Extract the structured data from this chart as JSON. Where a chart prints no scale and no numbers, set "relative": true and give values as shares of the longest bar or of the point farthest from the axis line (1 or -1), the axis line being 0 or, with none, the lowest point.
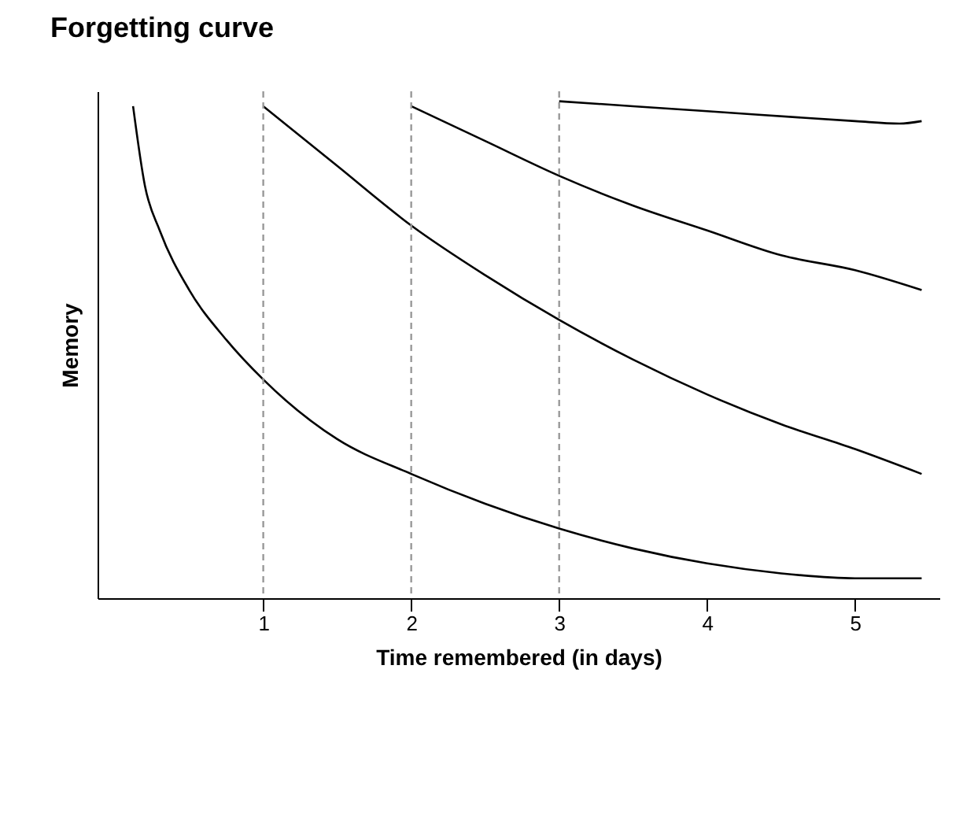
{
  "chart_data": {
    "type": "line",
    "title": "Forgetting curve",
    "xlabel": "Time remembered (in days)",
    "ylabel": "Memory",
    "relative": true,
    "xlim": [
      -0.12,
      5.57
    ],
    "xticks": [
      1,
      2,
      3,
      4,
      5
    ],
    "grid": false,
    "marker": "none",
    "line_style": "solid",
    "series": [
      {
        "color": "#000000",
        "x": [
          0.12,
          0.2,
          0.3,
          0.5,
          0.75,
          1,
          1.5,
          2,
          2.5,
          3,
          3.5,
          4,
          4.5,
          5,
          5.45
        ],
        "values": [
          0.99,
          0.83,
          0.74,
          0.62,
          0.52,
          0.44,
          0.32,
          0.25,
          0.19,
          0.14,
          0.1,
          0.07,
          0.05,
          0.04,
          0.04
        ]
      },
      {
        "color": "#000000",
        "x": [
          1,
          1.5,
          2,
          2.5,
          3,
          3.5,
          4,
          4.5,
          5,
          5.45
        ],
        "values": [
          0.99,
          0.87,
          0.75,
          0.65,
          0.56,
          0.48,
          0.41,
          0.35,
          0.3,
          0.25
        ]
      },
      {
        "color": "#000000",
        "x": [
          2,
          2.5,
          3,
          3.5,
          4,
          4.5,
          5,
          5.45
        ],
        "values": [
          0.99,
          0.92,
          0.85,
          0.79,
          0.74,
          0.69,
          0.66,
          0.62
        ]
      },
      {
        "color": "#000000",
        "x": [
          3,
          4,
          5,
          5.3,
          5.45
        ],
        "values": [
          1.0,
          0.98,
          0.96,
          0.955,
          0.96
        ]
      }
    ],
    "ref_lines": [
      {
        "axis": "x",
        "value": 1,
        "color": "#999999",
        "line_style": "dashed"
      },
      {
        "axis": "x",
        "value": 2,
        "color": "#999999",
        "line_style": "dashed"
      },
      {
        "axis": "x",
        "value": 3,
        "color": "#999999",
        "line_style": "dashed"
      }
    ]
  }
}
